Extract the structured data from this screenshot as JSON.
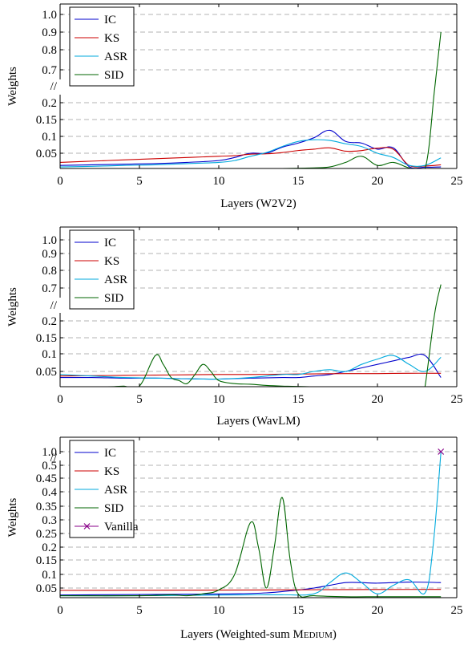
{
  "chart_data": [
    {
      "type": "line",
      "xlabel": "Layers (W2V2)",
      "ylabel": "Weights",
      "xlim": [
        0,
        25
      ],
      "xticks": [
        0,
        5,
        10,
        15,
        20,
        25
      ],
      "ytick_labels": [
        "0.05",
        "0.1",
        "0.15",
        "0.2",
        "//",
        "0.7",
        "0.8",
        "0.9",
        "1.0"
      ],
      "y_axis_break": "between 0.2 and 0.7",
      "grid": "horizontal dashed",
      "legend_position": "top-left",
      "series": [
        {
          "name": "IC",
          "color": "#0000cc",
          "x": [
            0,
            2,
            4,
            6,
            8,
            10,
            11,
            12,
            13,
            14,
            15,
            16,
            17,
            18,
            19,
            20,
            21,
            22,
            23,
            24
          ],
          "y": [
            0.01,
            0.012,
            0.014,
            0.016,
            0.02,
            0.026,
            0.036,
            0.05,
            0.05,
            0.068,
            0.08,
            0.096,
            0.118,
            0.085,
            0.08,
            0.062,
            0.066,
            0.006,
            0.004,
            0.005
          ]
        },
        {
          "name": "KS",
          "color": "#cc0000",
          "x": [
            0,
            2,
            4,
            6,
            8,
            10,
            11,
            12,
            13,
            14,
            15,
            16,
            17,
            18,
            19,
            20,
            21,
            22,
            23,
            24
          ],
          "y": [
            0.02,
            0.024,
            0.028,
            0.032,
            0.036,
            0.04,
            0.042,
            0.047,
            0.048,
            0.052,
            0.058,
            0.062,
            0.066,
            0.056,
            0.058,
            0.065,
            0.062,
            0.01,
            0.008,
            0.012
          ]
        },
        {
          "name": "ASR",
          "color": "#00aadd",
          "x": [
            0,
            2,
            4,
            6,
            8,
            10,
            11,
            12,
            13,
            14,
            15,
            16,
            17,
            18,
            19,
            20,
            21,
            22,
            23,
            24
          ],
          "y": [
            0.005,
            0.007,
            0.01,
            0.012,
            0.016,
            0.02,
            0.026,
            0.04,
            0.052,
            0.07,
            0.085,
            0.09,
            0.088,
            0.078,
            0.07,
            0.05,
            0.036,
            0.01,
            0.01,
            0.035
          ]
        },
        {
          "name": "SID",
          "color": "#006600",
          "x": [
            0,
            2,
            4,
            6,
            8,
            10,
            12,
            14,
            16,
            17,
            18,
            19,
            20,
            21,
            22,
            23,
            23.6,
            24
          ],
          "y": [
            0,
            0,
            0,
            0,
            0,
            0,
            0,
            0,
            0.002,
            0.005,
            0.02,
            0.04,
            0.01,
            0.02,
            0.002,
            0,
            0.4,
            0.9
          ]
        }
      ]
    },
    {
      "type": "line",
      "xlabel": "Layers (WavLM)",
      "ylabel": "Weights",
      "xlim": [
        0,
        25
      ],
      "xticks": [
        0,
        5,
        10,
        15,
        20,
        25
      ],
      "ytick_labels": [
        "0.05",
        "0.1",
        "0.15",
        "0.2",
        "//",
        "0.7",
        "0.8",
        "0.9",
        "1.0"
      ],
      "y_axis_break": "between 0.2 and 0.7",
      "grid": "horizontal dashed",
      "legend_position": "top-left",
      "series": [
        {
          "name": "IC",
          "color": "#0000cc",
          "x": [
            0,
            2,
            4,
            6,
            8,
            10,
            12,
            14,
            15,
            16,
            17,
            18,
            19,
            20,
            21,
            22,
            23,
            24
          ],
          "y": [
            0.03,
            0.03,
            0.028,
            0.028,
            0.026,
            0.025,
            0.028,
            0.03,
            0.03,
            0.035,
            0.04,
            0.05,
            0.06,
            0.07,
            0.08,
            0.09,
            0.095,
            0.03
          ]
        },
        {
          "name": "KS",
          "color": "#cc0000",
          "x": [
            0,
            2,
            4,
            6,
            8,
            10,
            12,
            14,
            16,
            18,
            20,
            22,
            24
          ],
          "y": [
            0.035,
            0.036,
            0.037,
            0.038,
            0.039,
            0.04,
            0.04,
            0.041,
            0.042,
            0.043,
            0.043,
            0.044,
            0.044
          ]
        },
        {
          "name": "ASR",
          "color": "#00aadd",
          "x": [
            0,
            2,
            4,
            6,
            8,
            10,
            12,
            14,
            15,
            16,
            17,
            18,
            19,
            20,
            21,
            22,
            23,
            24
          ],
          "y": [
            0.04,
            0.035,
            0.03,
            0.028,
            0.026,
            0.025,
            0.03,
            0.04,
            0.04,
            0.05,
            0.055,
            0.05,
            0.07,
            0.085,
            0.095,
            0.07,
            0.05,
            0.09
          ]
        },
        {
          "name": "SID",
          "color": "#006600",
          "x": [
            0,
            3,
            4,
            5,
            6,
            6.5,
            7,
            7.5,
            8,
            8.5,
            9,
            9.5,
            10,
            11,
            12,
            13,
            14,
            16,
            20,
            22,
            22.8,
            23,
            23.6,
            24
          ],
          "y": [
            0,
            0,
            0.002,
            0.002,
            0.095,
            0.07,
            0.03,
            0.02,
            0.01,
            0.04,
            0.07,
            0.05,
            0.02,
            0.01,
            0.008,
            0.004,
            0.002,
            0,
            0,
            0,
            0,
            0.001,
            0.3,
            0.72
          ]
        }
      ]
    },
    {
      "type": "line",
      "xlabel": "Layers (Weighted-sum MEDIUM)",
      "ylabel": "Weights",
      "xlim": [
        0,
        25
      ],
      "xticks": [
        0,
        5,
        10,
        15,
        20,
        25
      ],
      "ytick_labels": [
        "0.05",
        "0.1",
        "0.15",
        "0.2",
        "0.25",
        "0.3",
        "0.35",
        "0.4",
        "0.45",
        "0.5",
        "//",
        "1.0"
      ],
      "y_axis_break": "between 0.5 and 1.0",
      "grid": "horizontal dashed",
      "legend_position": "top-left",
      "series": [
        {
          "name": "IC",
          "color": "#0000cc",
          "x": [
            0,
            4,
            8,
            11,
            13,
            15,
            16,
            17,
            18,
            19,
            20,
            22,
            24
          ],
          "y": [
            0.014,
            0.016,
            0.018,
            0.02,
            0.025,
            0.04,
            0.05,
            0.06,
            0.07,
            0.07,
            0.068,
            0.072,
            0.07
          ]
        },
        {
          "name": "KS",
          "color": "#cc0000",
          "x": [
            0,
            6,
            12,
            18,
            24
          ],
          "y": [
            0.038,
            0.039,
            0.04,
            0.042,
            0.043
          ]
        },
        {
          "name": "ASR",
          "color": "#00aadd",
          "x": [
            0,
            4,
            8,
            12,
            14,
            16,
            17,
            18,
            19,
            20,
            21,
            22,
            23,
            23.5,
            24
          ],
          "y": [
            0.01,
            0.01,
            0.012,
            0.015,
            0.015,
            0.02,
            0.07,
            0.105,
            0.07,
            0.02,
            0.06,
            0.08,
            0.025,
            0.2,
            0.55
          ]
        },
        {
          "name": "SID",
          "color": "#006600",
          "x": [
            0,
            5,
            7,
            8,
            9,
            10,
            11,
            12,
            12.5,
            13,
            13.5,
            14,
            14.5,
            15,
            16,
            18,
            20,
            22,
            24
          ],
          "y": [
            0.01,
            0.01,
            0.015,
            0.01,
            0.02,
            0.04,
            0.1,
            0.29,
            0.2,
            0.05,
            0.2,
            0.38,
            0.15,
            0.02,
            0.01,
            0.005,
            0.005,
            0.005,
            0.005
          ]
        },
        {
          "name": "Vanilla",
          "color": "#880088",
          "marker": "x",
          "x": [
            24
          ],
          "y": [
            1.0
          ]
        }
      ]
    }
  ]
}
